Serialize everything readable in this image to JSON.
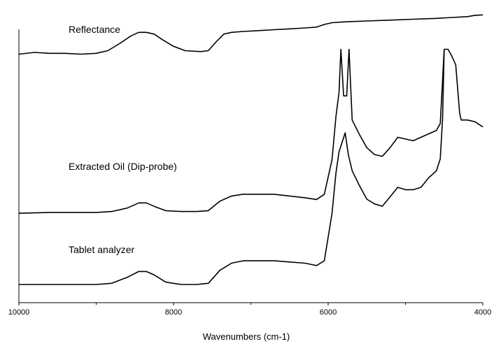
{
  "chart_data": {
    "type": "line",
    "title": "",
    "xlabel": "Wavenumbers (cm-1)",
    "ylabel": "",
    "xlim": [
      10000,
      4000
    ],
    "x_ticks": [
      10000,
      8000,
      6000,
      4000
    ],
    "x_reversed": true,
    "y_ticks_shown": false,
    "grid": false,
    "legend": "none",
    "series": [
      {
        "name": "Reflectance",
        "color": "#000000",
        "points": [
          [
            10000,
            0.46
          ],
          [
            9800,
            0.48
          ],
          [
            9600,
            0.47
          ],
          [
            9400,
            0.47
          ],
          [
            9200,
            0.46
          ],
          [
            9000,
            0.47
          ],
          [
            8850,
            0.5
          ],
          [
            8700,
            0.58
          ],
          [
            8550,
            0.67
          ],
          [
            8450,
            0.71
          ],
          [
            8350,
            0.71
          ],
          [
            8250,
            0.69
          ],
          [
            8150,
            0.63
          ],
          [
            8000,
            0.55
          ],
          [
            7850,
            0.5
          ],
          [
            7650,
            0.49
          ],
          [
            7550,
            0.5
          ],
          [
            7450,
            0.6
          ],
          [
            7350,
            0.69
          ],
          [
            7250,
            0.71
          ],
          [
            7100,
            0.72
          ],
          [
            6900,
            0.73
          ],
          [
            6700,
            0.74
          ],
          [
            6500,
            0.75
          ],
          [
            6300,
            0.76
          ],
          [
            6150,
            0.77
          ],
          [
            6050,
            0.8
          ],
          [
            5950,
            0.82
          ],
          [
            5800,
            0.83
          ],
          [
            5500,
            0.84
          ],
          [
            5200,
            0.85
          ],
          [
            4900,
            0.86
          ],
          [
            4600,
            0.87
          ],
          [
            4400,
            0.88
          ],
          [
            4200,
            0.89
          ],
          [
            4100,
            0.905
          ],
          [
            4000,
            0.91
          ]
        ]
      },
      {
        "name": "Extracted Oil (Dip-probe)",
        "color": "#000000",
        "points": [
          [
            10000,
            0.04
          ],
          [
            9600,
            0.045
          ],
          [
            9200,
            0.045
          ],
          [
            9000,
            0.045
          ],
          [
            8800,
            0.05
          ],
          [
            8600,
            0.07
          ],
          [
            8450,
            0.1
          ],
          [
            8350,
            0.1
          ],
          [
            8250,
            0.08
          ],
          [
            8100,
            0.055
          ],
          [
            7900,
            0.05
          ],
          [
            7700,
            0.05
          ],
          [
            7550,
            0.055
          ],
          [
            7400,
            0.11
          ],
          [
            7250,
            0.14
          ],
          [
            7100,
            0.15
          ],
          [
            6900,
            0.15
          ],
          [
            6700,
            0.15
          ],
          [
            6500,
            0.14
          ],
          [
            6300,
            0.13
          ],
          [
            6150,
            0.12
          ],
          [
            6050,
            0.15
          ],
          [
            5950,
            0.35
          ],
          [
            5900,
            0.6
          ],
          [
            5860,
            0.74
          ],
          [
            5835,
            0.99
          ],
          [
            5800,
            0.72
          ],
          [
            5760,
            0.72
          ],
          [
            5730,
            0.99
          ],
          [
            5690,
            0.58
          ],
          [
            5600,
            0.5
          ],
          [
            5500,
            0.42
          ],
          [
            5400,
            0.38
          ],
          [
            5300,
            0.37
          ],
          [
            5200,
            0.42
          ],
          [
            5100,
            0.48
          ],
          [
            5000,
            0.47
          ],
          [
            4900,
            0.46
          ],
          [
            4800,
            0.48
          ],
          [
            4700,
            0.5
          ],
          [
            4600,
            0.52
          ],
          [
            4550,
            0.56
          ],
          [
            4500,
            0.99
          ],
          [
            4450,
            0.99
          ],
          [
            4400,
            0.95
          ],
          [
            4350,
            0.9
          ],
          [
            4300,
            0.62
          ],
          [
            4280,
            0.58
          ],
          [
            4200,
            0.58
          ],
          [
            4100,
            0.57
          ],
          [
            4000,
            0.54
          ]
        ]
      },
      {
        "name": "Tablet analyzer",
        "color": "#000000",
        "points": [
          [
            10000,
            0.0
          ],
          [
            9600,
            0.0
          ],
          [
            9200,
            0.0
          ],
          [
            9000,
            0.0
          ],
          [
            8800,
            0.005
          ],
          [
            8600,
            0.03
          ],
          [
            8450,
            0.055
          ],
          [
            8350,
            0.055
          ],
          [
            8250,
            0.04
          ],
          [
            8100,
            0.01
          ],
          [
            7900,
            0.0
          ],
          [
            7700,
            0.0
          ],
          [
            7550,
            0.005
          ],
          [
            7400,
            0.06
          ],
          [
            7250,
            0.09
          ],
          [
            7100,
            0.1
          ],
          [
            6900,
            0.1
          ],
          [
            6700,
            0.1
          ],
          [
            6500,
            0.095
          ],
          [
            6300,
            0.09
          ],
          [
            6150,
            0.08
          ],
          [
            6050,
            0.1
          ],
          [
            5950,
            0.3
          ],
          [
            5900,
            0.47
          ],
          [
            5860,
            0.56
          ],
          [
            5820,
            0.6
          ],
          [
            5780,
            0.64
          ],
          [
            5740,
            0.55
          ],
          [
            5690,
            0.48
          ],
          [
            5600,
            0.42
          ],
          [
            5500,
            0.36
          ],
          [
            5400,
            0.34
          ],
          [
            5300,
            0.33
          ],
          [
            5200,
            0.37
          ],
          [
            5100,
            0.41
          ],
          [
            5000,
            0.4
          ],
          [
            4900,
            0.4
          ],
          [
            4800,
            0.41
          ],
          [
            4700,
            0.45
          ],
          [
            4600,
            0.48
          ],
          [
            4550,
            0.53
          ],
          [
            4520,
            0.7
          ],
          [
            4500,
            0.99
          ]
        ]
      }
    ]
  },
  "labels": {
    "reflectance": "Reflectance",
    "extracted_oil": "Extracted Oil (Dip-probe)",
    "tablet": "Tablet analyzer"
  }
}
